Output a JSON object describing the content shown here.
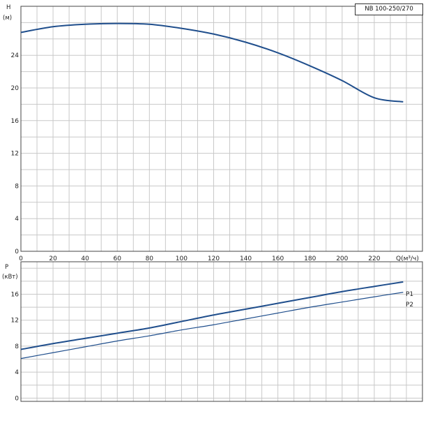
{
  "model_label": "NB 100-250/270",
  "colors": {
    "curve": "#1f4e8c",
    "grid": "#c8c8c8",
    "frame": "#444444"
  },
  "chart_data": [
    {
      "type": "line",
      "id": "head",
      "ylabel": "H",
      "yunit": "(м)",
      "xlabel": "Q(м³/ч)",
      "xlim": [
        0,
        250
      ],
      "ylim": [
        0,
        30
      ],
      "xticks": [
        "0",
        "20",
        "40",
        "60",
        "80",
        "100",
        "120",
        "140",
        "160",
        "180",
        "200",
        "220"
      ],
      "yticks": [
        "0",
        "4",
        "8",
        "12",
        "16",
        "20",
        "24"
      ],
      "grid": true,
      "series": [
        {
          "x": [
            0,
            20,
            40,
            60,
            80,
            100,
            120,
            140,
            160,
            180,
            200,
            220,
            238
          ],
          "values": [
            26.8,
            27.5,
            27.8,
            27.9,
            27.8,
            27.3,
            26.6,
            25.6,
            24.3,
            22.7,
            20.9,
            18.8,
            18.3
          ]
        }
      ]
    },
    {
      "type": "line",
      "id": "power",
      "ylabel": "P",
      "yunit": "(кВт)",
      "xlim": [
        0,
        250
      ],
      "ylim": [
        -0.5,
        21
      ],
      "yticks": [
        "0",
        "4",
        "8",
        "12",
        "16"
      ],
      "grid": true,
      "series": [
        {
          "name": "P1",
          "x": [
            0,
            20,
            40,
            60,
            80,
            100,
            120,
            140,
            160,
            180,
            200,
            220,
            238
          ],
          "values": [
            7.5,
            8.4,
            9.2,
            10.0,
            10.8,
            11.8,
            12.8,
            13.7,
            14.6,
            15.5,
            16.4,
            17.2,
            17.9
          ]
        },
        {
          "name": "P2",
          "x": [
            0,
            20,
            40,
            60,
            80,
            100,
            120,
            140,
            160,
            180,
            200,
            220,
            238
          ],
          "values": [
            6.1,
            7.0,
            7.9,
            8.8,
            9.6,
            10.5,
            11.3,
            12.2,
            13.1,
            14.0,
            14.8,
            15.6,
            16.3
          ]
        }
      ]
    }
  ]
}
